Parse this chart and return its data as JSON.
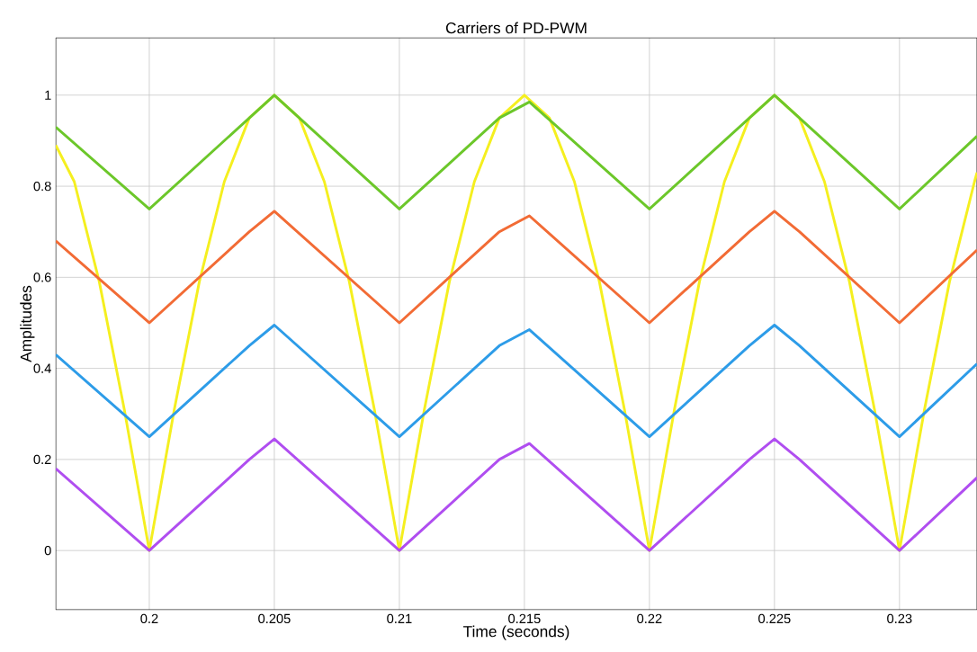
{
  "chart_data": {
    "type": "line",
    "title": "Carriers of PD-PWM",
    "xlabel": "Time (seconds)",
    "ylabel": "Amplitudes",
    "xlim": [
      0.19626,
      0.2331
    ],
    "ylim": [
      -0.13,
      1.126
    ],
    "xticks": [
      0.2,
      0.205,
      0.21,
      0.215,
      0.22,
      0.225,
      0.23
    ],
    "yticks": [
      0,
      0.2,
      0.4,
      0.6,
      0.8,
      1
    ],
    "grid": true,
    "legend": false,
    "marker": "none",
    "line_style": "solid",
    "series": [
      {
        "color": "#f5ef1f",
        "x": [
          0.19626,
          0.197,
          0.198,
          0.199,
          0.2,
          0.201,
          0.202,
          0.203,
          0.204,
          0.205,
          0.206,
          0.207,
          0.208,
          0.209,
          0.21,
          0.211,
          0.212,
          0.213,
          0.214,
          0.215,
          0.216,
          0.217,
          0.218,
          0.219,
          0.22,
          0.221,
          0.222,
          0.223,
          0.224,
          0.225,
          0.226,
          0.227,
          0.228,
          0.229,
          0.23,
          0.231,
          0.232,
          0.233,
          0.2331
        ],
        "values": [
          0.89,
          0.81,
          0.59,
          0.31,
          0,
          0.31,
          0.59,
          0.81,
          0.95,
          1,
          0.95,
          0.81,
          0.59,
          0.31,
          0,
          0.31,
          0.59,
          0.81,
          0.95,
          1,
          0.95,
          0.81,
          0.59,
          0.31,
          0,
          0.31,
          0.59,
          0.81,
          0.95,
          1,
          0.95,
          0.81,
          0.59,
          0.31,
          0,
          0.31,
          0.59,
          0.81,
          0.83
        ]
      },
      {
        "color": "#6cc72a",
        "x": [
          0.19626,
          0.2,
          0.204,
          0.205,
          0.21,
          0.214,
          0.2152,
          0.22,
          0.224,
          0.225,
          0.226,
          0.23,
          0.2331
        ],
        "values": [
          0.93,
          0.75,
          0.95,
          1.0,
          0.75,
          0.95,
          0.985,
          0.75,
          0.95,
          1.0,
          0.95,
          0.75,
          0.91
        ]
      },
      {
        "color": "#f26b35",
        "x": [
          0.19626,
          0.2,
          0.204,
          0.205,
          0.21,
          0.214,
          0.2152,
          0.22,
          0.224,
          0.225,
          0.226,
          0.23,
          0.2331
        ],
        "values": [
          0.68,
          0.5,
          0.7,
          0.745,
          0.5,
          0.7,
          0.735,
          0.5,
          0.7,
          0.745,
          0.7,
          0.5,
          0.66
        ]
      },
      {
        "color": "#2d9ce8",
        "x": [
          0.19626,
          0.2,
          0.204,
          0.205,
          0.21,
          0.214,
          0.2152,
          0.22,
          0.224,
          0.225,
          0.226,
          0.23,
          0.2331
        ],
        "values": [
          0.43,
          0.25,
          0.45,
          0.495,
          0.25,
          0.45,
          0.485,
          0.25,
          0.45,
          0.495,
          0.45,
          0.25,
          0.41
        ]
      },
      {
        "color": "#b04ef0",
        "x": [
          0.19626,
          0.2,
          0.204,
          0.205,
          0.21,
          0.214,
          0.2152,
          0.22,
          0.224,
          0.225,
          0.226,
          0.23,
          0.2331
        ],
        "values": [
          0.18,
          0,
          0.2,
          0.245,
          0,
          0.2,
          0.235,
          0,
          0.2,
          0.245,
          0.2,
          0,
          0.16
        ]
      }
    ]
  }
}
